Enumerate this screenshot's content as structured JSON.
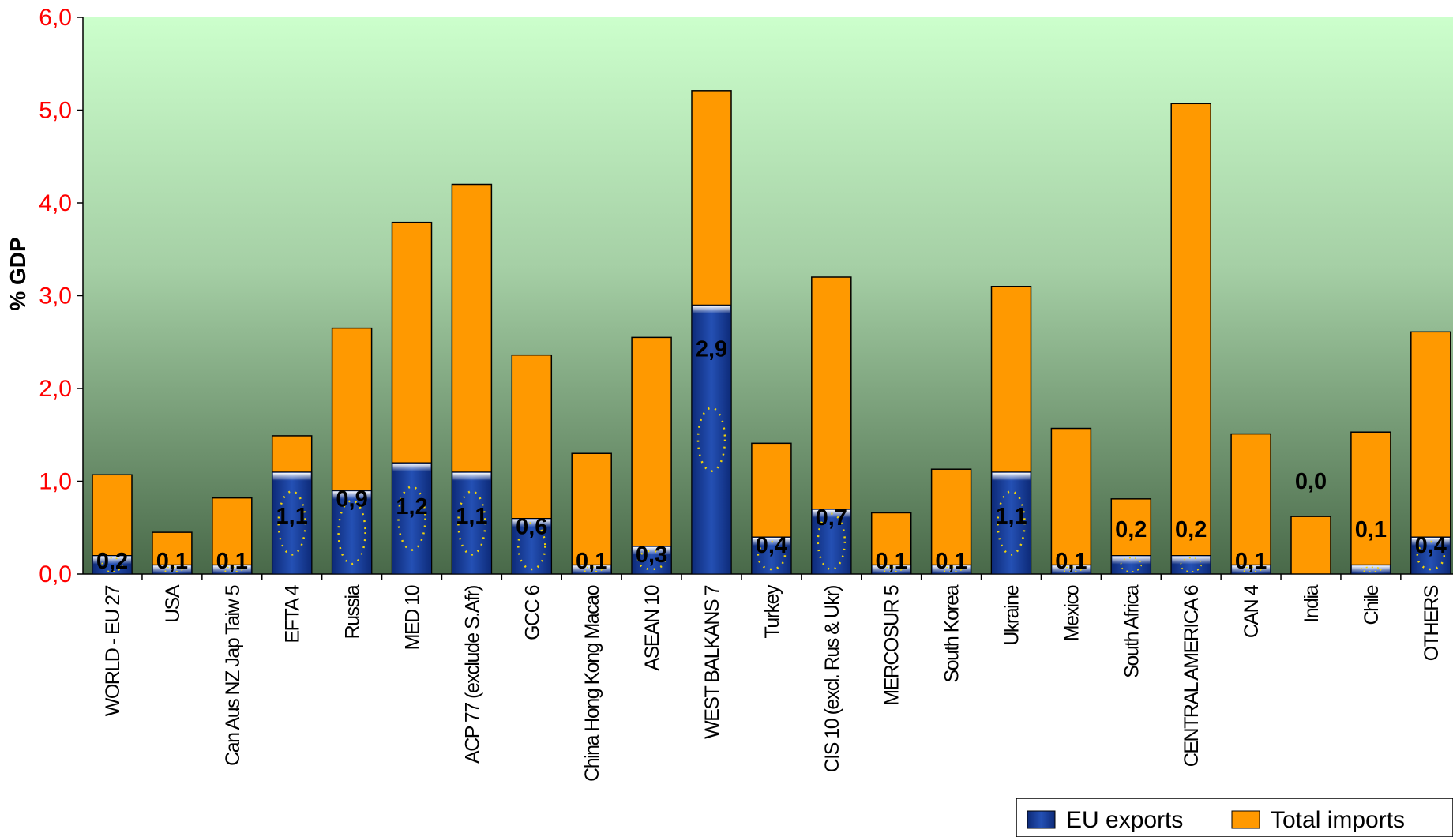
{
  "chart_data": {
    "type": "bar",
    "ylabel": "% GDP",
    "ylim": [
      0,
      6
    ],
    "yticks": [
      "0,0",
      "1,0",
      "2,0",
      "3,0",
      "4,0",
      "5,0",
      "6,0"
    ],
    "legend_position": "bottom-right",
    "categories": [
      "WORLD - EU 27",
      "USA",
      "Can Aus NZ Jap Taiw 5",
      "EFTA 4",
      "Russia",
      "MED 10",
      "ACP 77 (exclude S.Afr)",
      "GCC 6",
      "China Hong Kong Macao",
      "ASEAN 10",
      "WEST BALKANS 7",
      "Turkey",
      "CIS 10 (excl. Rus & Ukr)",
      "MERCOSUR 5",
      "South Korea",
      "Ukraine",
      "Mexico",
      "South Africa",
      "CENTRAL AMERICA 6",
      "CAN 4",
      "India",
      "Chile",
      "OTHERS"
    ],
    "series": [
      {
        "name": "EU exports",
        "color": "#1f3f9a",
        "values": [
          0.2,
          0.1,
          0.1,
          1.1,
          0.9,
          1.2,
          1.1,
          0.6,
          0.1,
          0.3,
          2.9,
          0.4,
          0.7,
          0.1,
          0.1,
          1.1,
          0.1,
          0.2,
          0.2,
          0.1,
          0.0,
          0.1,
          0.4
        ],
        "labels": [
          "0,2",
          "0,1",
          "0,1",
          "1,1",
          "0,9",
          "1,2",
          "1,1",
          "0,6",
          "0,1",
          "0,3",
          "2,9",
          "0,4",
          "0,7",
          "0,1",
          "0,1",
          "1,1",
          "0,1",
          "0,2",
          "0,2",
          "0,1",
          "0,0",
          "0,1",
          "0,4"
        ]
      },
      {
        "name": "Total imports",
        "color": "#ff9900",
        "values": [
          1.07,
          0.45,
          0.82,
          1.49,
          2.65,
          3.79,
          4.2,
          2.36,
          1.3,
          2.55,
          5.21,
          1.41,
          3.2,
          0.66,
          1.13,
          3.1,
          1.57,
          0.81,
          5.07,
          1.51,
          0.62,
          1.53,
          2.61
        ]
      }
    ]
  }
}
